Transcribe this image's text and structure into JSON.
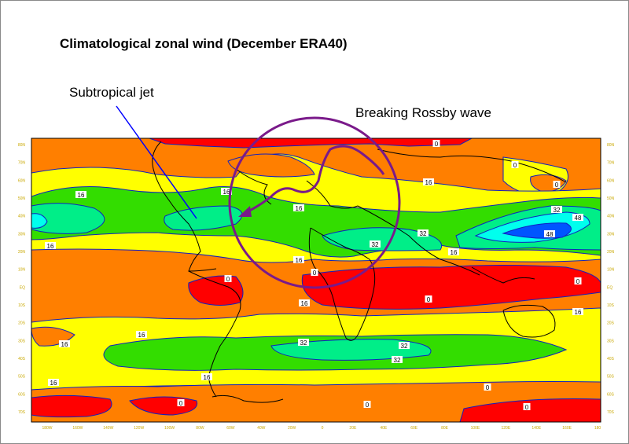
{
  "title": "Climatological zonal wind (December ERA40)",
  "annotations": {
    "jet": "Subtropical jet",
    "wave": "Breaking Rossby wave"
  },
  "contour_labels": [
    "0",
    "16",
    "16",
    "16",
    "16",
    "16",
    "16",
    "16",
    "16",
    "16",
    "16",
    "16",
    "16",
    "16",
    "32",
    "32",
    "32",
    "32",
    "32",
    "32",
    "48",
    "48",
    "0",
    "0",
    "0",
    "0",
    "0",
    "0",
    "0",
    "0",
    "0",
    "0"
  ],
  "lon_ticks": [
    "180W",
    "160W",
    "140W",
    "120W",
    "100W",
    "80W",
    "60W",
    "40W",
    "20W",
    "0",
    "20E",
    "40E",
    "60E",
    "80E",
    "100E",
    "120E",
    "140E",
    "160E",
    "180"
  ],
  "lat_ticks": [
    "80N",
    "70N",
    "60N",
    "50N",
    "40N",
    "30N",
    "20N",
    "10N",
    "EQ",
    "10S",
    "20S",
    "30S",
    "40S",
    "50S",
    "60S",
    "70S"
  ],
  "colors": {
    "red": "#ff0000",
    "orange": "#ff7f00",
    "yellow": "#ffff00",
    "green": "#33dd00",
    "cyan_green": "#00ee88",
    "cyan": "#00ffee",
    "blue": "#0055ff",
    "contour": "#1020c0",
    "annotation_purple": "#7a1a8a",
    "jet_arrow": "#0000ff"
  }
}
